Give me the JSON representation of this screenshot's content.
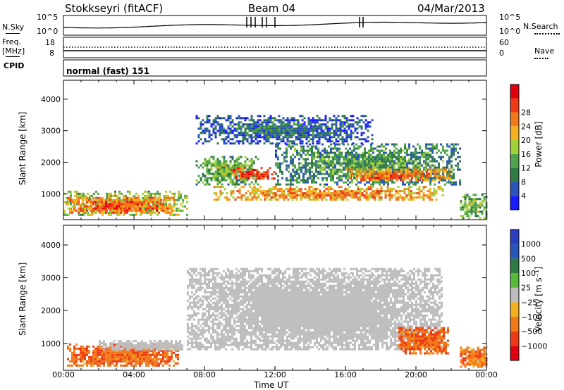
{
  "header": {
    "station": "Stokkseyri (fitACF)",
    "beam": "Beam 04",
    "date": "04/Mar/2013"
  },
  "strip_labels": {
    "nsky": "N.Sky",
    "nsearch": "N.Search",
    "freq_top": "Freq.",
    "freq_unit": "[MHz]",
    "nave": "Nave",
    "cpid": "CPID",
    "cpid_value": "normal (fast) 151",
    "left_ticks_top": [
      "10^5",
      "10^0"
    ],
    "right_ticks_top": [
      "10^5",
      "10^0"
    ],
    "left_ticks_freq": [
      "18",
      "8"
    ],
    "right_ticks_nave": [
      "60",
      "0"
    ]
  },
  "colors": {
    "power_scale": [
      "#1a1aff",
      "#2a55b8",
      "#2f7a45",
      "#4fa34a",
      "#9fd138",
      "#f2b21f",
      "#f07a1a",
      "#ee3b17",
      "#e0000f"
    ],
    "velocity_scale": [
      "#2a3fbf",
      "#2a55b8",
      "#2f7a45",
      "#58b83a",
      "#bdbdbd",
      "#f2b21f",
      "#f07a1a",
      "#ee3b17",
      "#e0000f"
    ],
    "ground_scatter": "#bdbdbd"
  },
  "chart_data": [
    {
      "type": "heatmap",
      "title": "Power",
      "xlabel": "Time UT",
      "ylabel": "Slant Range [km]",
      "x_ticks": [
        "00:00",
        "04:00",
        "08:00",
        "12:00",
        "16:00",
        "20:00",
        "00:00"
      ],
      "y_ticks": [
        "1000",
        "2000",
        "3000",
        "4000"
      ],
      "xlim": [
        0,
        24
      ],
      "ylim": [
        180,
        4600
      ],
      "colorbar": {
        "label": "Power [dB]",
        "ticks": [
          "4",
          "8",
          "12",
          "16",
          "20",
          "24",
          "28"
        ],
        "range": [
          0,
          30
        ]
      },
      "regions": [
        {
          "t": [
            0.0,
            7.0
          ],
          "r": [
            300,
            1100
          ],
          "level": 18
        },
        {
          "t": [
            0.2,
            6.2
          ],
          "r": [
            400,
            900
          ],
          "level": 25
        },
        {
          "t": [
            7.5,
            11.0
          ],
          "r": [
            1300,
            2200
          ],
          "level": 14
        },
        {
          "t": [
            9.5,
            12.0
          ],
          "r": [
            1450,
            1850
          ],
          "level": 27
        },
        {
          "t": [
            8.5,
            21.5
          ],
          "r": [
            800,
            1250
          ],
          "level": 22
        },
        {
          "t": [
            12.0,
            22.5
          ],
          "r": [
            1300,
            2600
          ],
          "level": 12
        },
        {
          "t": [
            16.0,
            22.0
          ],
          "r": [
            1400,
            1800
          ],
          "level": 24
        },
        {
          "t": [
            7.5,
            17.5
          ],
          "r": [
            2600,
            3500
          ],
          "level": 8
        },
        {
          "t": [
            22.5,
            24.0
          ],
          "r": [
            250,
            1000
          ],
          "level": 15
        }
      ]
    },
    {
      "type": "heatmap",
      "title": "Velocity",
      "xlabel": "Time UT",
      "ylabel": "Slant Range [km]",
      "x_ticks": [
        "00:00",
        "04:00",
        "08:00",
        "12:00",
        "16:00",
        "20:00",
        "00:00"
      ],
      "y_ticks": [
        "1000",
        "2000",
        "3000",
        "4000"
      ],
      "xlim": [
        0,
        24
      ],
      "ylim": [
        180,
        4600
      ],
      "colorbar": {
        "label": "Velocity [m s⁻¹]",
        "ticks": [
          "1000",
          "500",
          "100",
          "25",
          "−25",
          "−100",
          "−500",
          "−1000"
        ],
        "range": [
          -1200,
          1200
        ]
      },
      "regions": [
        {
          "t": [
            0.2,
            6.5
          ],
          "r": [
            300,
            1000
          ],
          "vel": -300
        },
        {
          "t": [
            2.0,
            6.8
          ],
          "r": [
            800,
            1100
          ],
          "vel": 0
        },
        {
          "t": [
            7.0,
            21.5
          ],
          "r": [
            800,
            3300
          ],
          "vel": 0
        },
        {
          "t": [
            19.0,
            21.8
          ],
          "r": [
            700,
            1500
          ],
          "vel": -300
        },
        {
          "t": [
            22.5,
            24.0
          ],
          "r": [
            300,
            900
          ],
          "vel": -250
        }
      ]
    }
  ]
}
